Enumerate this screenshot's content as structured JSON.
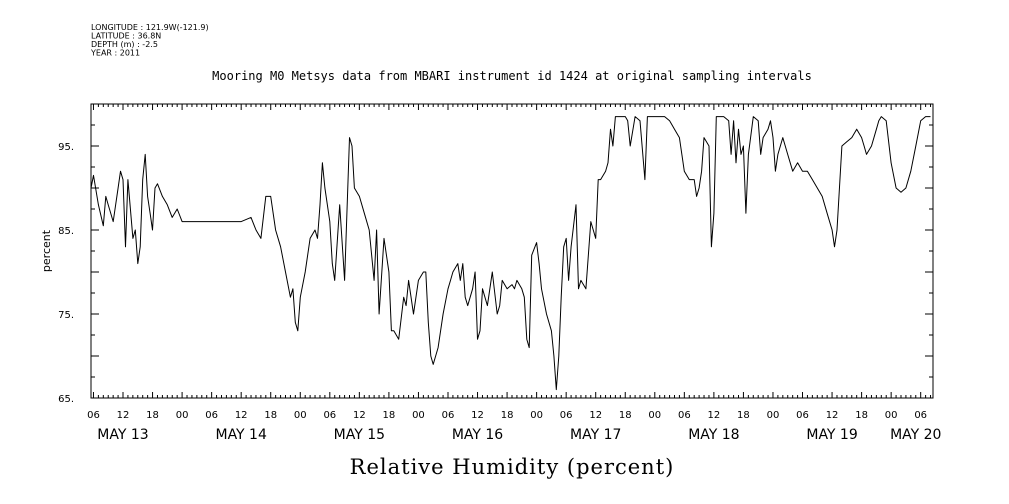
{
  "chart_data": {
    "type": "line",
    "metadata_lines": [
      "LONGITUDE : 121.9W(-121.9)",
      "LATITUDE : 36.8N",
      "DEPTH (m) : -2.5",
      "YEAR : 2011"
    ],
    "title": "Mooring M0 Metsys data from MBARI instrument id 1424 at original sampling intervals",
    "xlabel": "Relative Humidity (percent)",
    "ylabel": "percent",
    "ylim": [
      65,
      100
    ],
    "y_ticks": [
      {
        "value": 65,
        "label": "65."
      },
      {
        "value": 75,
        "label": "75."
      },
      {
        "value": 85,
        "label": "85."
      },
      {
        "value": 95,
        "label": "95."
      }
    ],
    "x_hour_ticks": [
      {
        "hour": 6,
        "label": "06"
      },
      {
        "hour": 12,
        "label": "12"
      },
      {
        "hour": 18,
        "label": "18"
      },
      {
        "hour": 24,
        "label": "00"
      },
      {
        "hour": 30,
        "label": "06"
      },
      {
        "hour": 36,
        "label": "12"
      },
      {
        "hour": 42,
        "label": "18"
      },
      {
        "hour": 48,
        "label": "00"
      },
      {
        "hour": 54,
        "label": "06"
      },
      {
        "hour": 60,
        "label": "12"
      },
      {
        "hour": 66,
        "label": "18"
      },
      {
        "hour": 72,
        "label": "00"
      },
      {
        "hour": 78,
        "label": "06"
      },
      {
        "hour": 84,
        "label": "12"
      },
      {
        "hour": 90,
        "label": "18"
      },
      {
        "hour": 96,
        "label": "00"
      },
      {
        "hour": 102,
        "label": "06"
      },
      {
        "hour": 108,
        "label": "12"
      },
      {
        "hour": 114,
        "label": "18"
      },
      {
        "hour": 120,
        "label": "00"
      },
      {
        "hour": 126,
        "label": "06"
      },
      {
        "hour": 132,
        "label": "12"
      },
      {
        "hour": 138,
        "label": "18"
      },
      {
        "hour": 144,
        "label": "00"
      },
      {
        "hour": 150,
        "label": "06"
      },
      {
        "hour": 156,
        "label": "12"
      },
      {
        "hour": 162,
        "label": "18"
      },
      {
        "hour": 168,
        "label": "00"
      },
      {
        "hour": 174,
        "label": "06"
      }
    ],
    "x_date_labels": [
      {
        "hour": 12,
        "label": "MAY 13"
      },
      {
        "hour": 36,
        "label": "MAY 14"
      },
      {
        "hour": 60,
        "label": "MAY 15"
      },
      {
        "hour": 84,
        "label": "MAY 16"
      },
      {
        "hour": 108,
        "label": "MAY 17"
      },
      {
        "hour": 132,
        "label": "MAY 18"
      },
      {
        "hour": 156,
        "label": "MAY 19"
      },
      {
        "hour": 173,
        "label": "MAY 20"
      }
    ],
    "x_range_hours": [
      5.5,
      176.5
    ],
    "series": [
      {
        "values": [
          [
            5.5,
            90
          ],
          [
            6,
            91.5
          ],
          [
            7,
            88
          ],
          [
            8,
            85.5
          ],
          [
            8.5,
            89
          ],
          [
            9,
            88
          ],
          [
            10,
            86
          ],
          [
            11,
            90
          ],
          [
            11.5,
            92
          ],
          [
            12,
            91
          ],
          [
            12.5,
            83
          ],
          [
            13,
            91
          ],
          [
            14,
            84
          ],
          [
            14.5,
            85
          ],
          [
            15,
            81
          ],
          [
            15.5,
            83
          ],
          [
            16,
            91
          ],
          [
            16.5,
            94
          ],
          [
            17,
            89
          ],
          [
            17.5,
            87
          ],
          [
            18,
            85
          ],
          [
            18.5,
            90
          ],
          [
            19,
            90.5
          ],
          [
            20,
            89
          ],
          [
            21,
            88
          ],
          [
            22,
            86.5
          ],
          [
            23,
            87.5
          ],
          [
            24,
            86
          ],
          [
            26,
            86
          ],
          [
            36,
            86
          ],
          [
            38,
            86.5
          ],
          [
            39,
            85
          ],
          [
            40,
            84
          ],
          [
            41,
            89
          ],
          [
            42,
            89
          ],
          [
            43,
            85
          ],
          [
            44,
            83
          ],
          [
            45,
            80
          ],
          [
            46,
            77
          ],
          [
            46.5,
            78
          ],
          [
            47,
            74
          ],
          [
            47.5,
            73
          ],
          [
            48,
            77
          ],
          [
            49,
            80
          ],
          [
            50,
            84
          ],
          [
            51,
            85
          ],
          [
            51.5,
            84
          ],
          [
            52,
            88
          ],
          [
            52.5,
            93
          ],
          [
            53,
            90
          ],
          [
            54,
            86
          ],
          [
            54.5,
            81
          ],
          [
            55,
            79
          ],
          [
            56,
            88
          ],
          [
            57,
            79
          ],
          [
            58,
            96
          ],
          [
            58.5,
            95
          ],
          [
            59,
            90
          ],
          [
            60,
            89
          ],
          [
            61,
            87
          ],
          [
            62,
            85
          ],
          [
            63,
            79
          ],
          [
            63.5,
            85
          ],
          [
            64,
            75
          ],
          [
            65,
            84
          ],
          [
            66,
            80
          ],
          [
            66.5,
            73
          ],
          [
            67,
            73
          ],
          [
            68,
            72
          ],
          [
            69,
            77
          ],
          [
            69.5,
            76
          ],
          [
            70,
            79
          ],
          [
            71,
            75
          ],
          [
            72,
            79
          ],
          [
            73,
            80
          ],
          [
            73.5,
            80
          ],
          [
            74,
            74
          ],
          [
            74.5,
            70
          ],
          [
            75,
            69
          ],
          [
            76,
            71
          ],
          [
            77,
            75
          ],
          [
            78,
            78
          ],
          [
            78.5,
            79
          ],
          [
            79,
            80
          ],
          [
            80,
            81
          ],
          [
            80.5,
            79
          ],
          [
            81,
            81
          ],
          [
            81.5,
            77
          ],
          [
            82,
            76
          ],
          [
            83,
            78
          ],
          [
            83.5,
            80
          ],
          [
            84,
            72
          ],
          [
            84.5,
            73
          ],
          [
            85,
            78
          ],
          [
            86,
            76
          ],
          [
            87,
            80
          ],
          [
            88,
            75
          ],
          [
            88.5,
            76
          ],
          [
            89,
            79
          ],
          [
            90,
            78
          ],
          [
            91,
            78.5
          ],
          [
            91.5,
            78
          ],
          [
            92,
            79
          ],
          [
            93,
            78
          ],
          [
            93.5,
            77
          ],
          [
            94,
            72
          ],
          [
            94.5,
            71
          ],
          [
            95,
            82
          ],
          [
            96,
            83.5
          ],
          [
            96.5,
            81
          ],
          [
            97,
            78
          ],
          [
            98,
            75
          ],
          [
            99,
            73
          ],
          [
            99.5,
            70
          ],
          [
            100,
            66
          ],
          [
            100.5,
            70
          ],
          [
            101,
            77
          ],
          [
            101.5,
            83
          ],
          [
            102,
            84
          ],
          [
            102.5,
            79
          ],
          [
            103,
            83
          ],
          [
            104,
            88
          ],
          [
            104.5,
            78
          ],
          [
            105,
            79
          ],
          [
            106,
            78
          ],
          [
            107,
            86
          ],
          [
            108,
            84
          ],
          [
            108.5,
            91
          ],
          [
            109,
            91
          ],
          [
            110,
            92
          ],
          [
            110.5,
            93
          ],
          [
            111,
            97
          ],
          [
            111.5,
            95
          ],
          [
            112,
            98.5
          ],
          [
            113,
            98.5
          ],
          [
            114,
            98.5
          ],
          [
            114.5,
            98
          ],
          [
            115,
            95
          ],
          [
            116,
            98.5
          ],
          [
            117,
            98
          ],
          [
            118,
            91
          ],
          [
            118.5,
            98.5
          ],
          [
            120,
            98.5
          ],
          [
            122,
            98.5
          ],
          [
            123,
            98
          ],
          [
            124,
            97
          ],
          [
            125,
            96
          ],
          [
            126,
            92
          ],
          [
            127,
            91
          ],
          [
            128,
            91
          ],
          [
            128.5,
            89
          ],
          [
            129,
            90
          ],
          [
            129.5,
            92
          ],
          [
            130,
            96
          ],
          [
            131,
            95
          ],
          [
            131.5,
            83
          ],
          [
            132,
            87
          ],
          [
            132.5,
            98.5
          ],
          [
            133,
            98.5
          ],
          [
            134,
            98.5
          ],
          [
            135,
            98
          ],
          [
            135.5,
            94
          ],
          [
            136,
            98
          ],
          [
            136.5,
            93
          ],
          [
            137,
            97
          ],
          [
            137.5,
            94
          ],
          [
            138,
            95
          ],
          [
            138.5,
            87
          ],
          [
            139,
            94
          ],
          [
            140,
            98.5
          ],
          [
            141,
            98
          ],
          [
            141.5,
            94
          ],
          [
            142,
            96
          ],
          [
            143,
            97
          ],
          [
            143.5,
            98
          ],
          [
            144,
            96
          ],
          [
            144.5,
            92
          ],
          [
            145,
            94
          ],
          [
            146,
            96
          ],
          [
            147,
            94
          ],
          [
            148,
            92
          ],
          [
            149,
            93
          ],
          [
            150,
            92
          ],
          [
            151,
            92
          ],
          [
            152,
            91
          ],
          [
            153,
            90
          ],
          [
            154,
            89
          ],
          [
            155,
            87
          ],
          [
            156,
            85
          ],
          [
            156.5,
            83
          ],
          [
            157,
            85
          ],
          [
            158,
            95
          ],
          [
            159,
            95.5
          ],
          [
            160,
            96
          ],
          [
            161,
            97
          ],
          [
            162,
            96
          ],
          [
            162.5,
            95
          ],
          [
            163,
            94
          ],
          [
            164,
            95
          ],
          [
            165,
            97
          ],
          [
            165.5,
            98
          ],
          [
            166,
            98.5
          ],
          [
            167,
            98
          ],
          [
            168,
            93
          ],
          [
            169,
            90
          ],
          [
            170,
            89.5
          ],
          [
            171,
            90
          ],
          [
            172,
            92
          ],
          [
            173,
            95
          ],
          [
            174,
            98
          ],
          [
            175,
            98.5
          ],
          [
            176,
            98.5
          ],
          [
            178,
            98.5
          ],
          [
            180,
            98.5
          ],
          [
            181,
            98
          ],
          [
            182,
            98.5
          ],
          [
            184,
            98.5
          ],
          [
            186,
            98.5
          ],
          [
            187,
            98.5
          ]
        ]
      }
    ]
  }
}
